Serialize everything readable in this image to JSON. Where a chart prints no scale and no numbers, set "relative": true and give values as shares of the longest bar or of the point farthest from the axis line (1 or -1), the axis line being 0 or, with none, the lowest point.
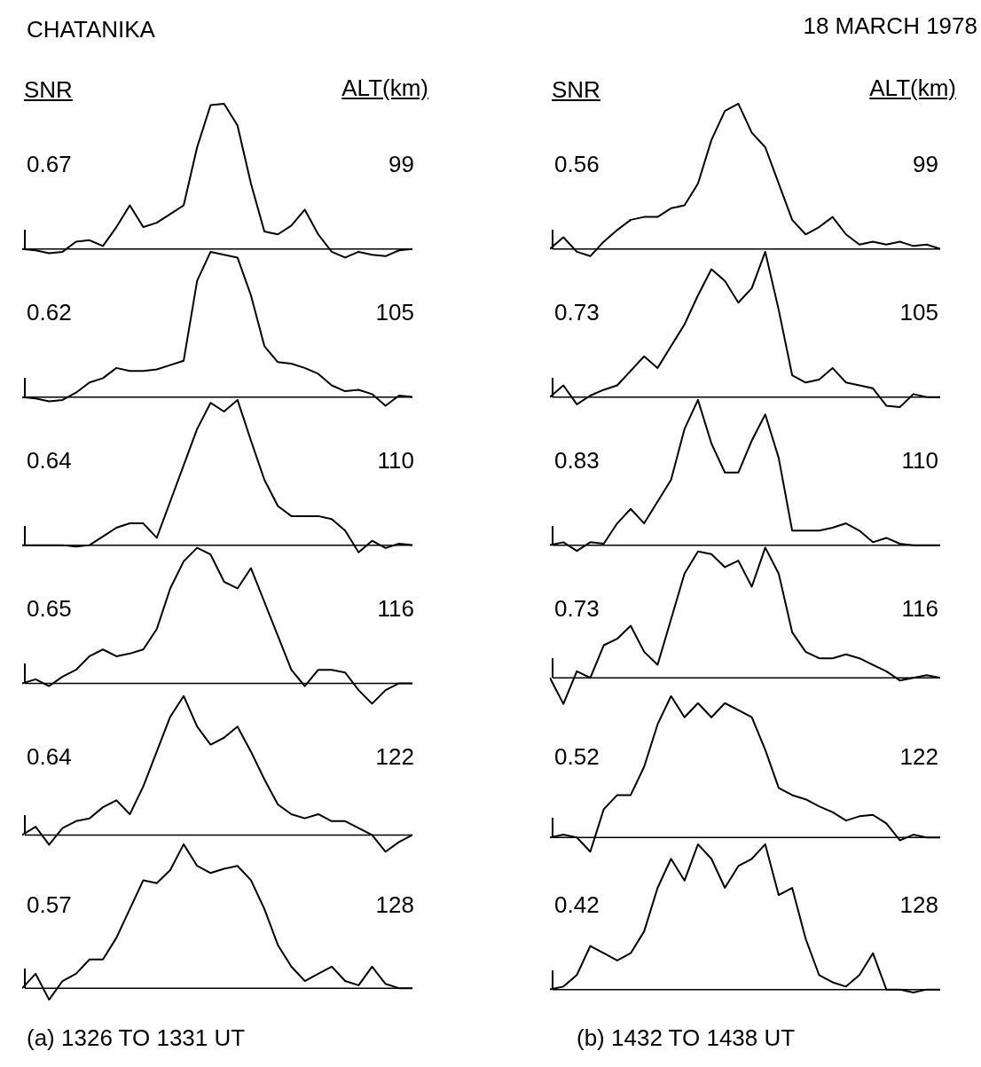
{
  "chart_data": [
    {
      "type": "line",
      "title": "CHATANIKA",
      "ylabel": "SNR",
      "y2label": "ALT(km)",
      "relative": true,
      "color": "#000000",
      "annotations": [
        "0.67",
        "99"
      ],
      "categories": [
        null,
        null,
        null,
        null,
        null,
        null,
        null,
        null,
        null,
        null,
        null,
        null,
        null,
        null,
        null,
        null,
        null,
        null,
        null,
        null,
        null,
        null,
        null,
        null,
        null,
        null,
        null,
        null,
        null,
        null
      ],
      "values": [
        0,
        -0.01,
        -0.03,
        -0.02,
        0.05,
        0.06,
        0.02,
        0.15,
        0.3,
        0.15,
        0.18,
        0.24,
        0.3,
        0.7,
        0.99,
        1.0,
        0.85,
        0.45,
        0.12,
        0.1,
        0.16,
        0.27,
        0.1,
        -0.02,
        -0.06,
        -0.02,
        -0.04,
        -0.05,
        -0.01,
        0
      ]
    },
    {
      "type": "line",
      "relative": true,
      "color": "#000000",
      "annotations": [
        "0.62",
        "105"
      ],
      "categories": [
        null,
        null,
        null,
        null,
        null,
        null,
        null,
        null,
        null,
        null,
        null,
        null,
        null,
        null,
        null,
        null,
        null,
        null,
        null,
        null,
        null,
        null,
        null,
        null,
        null,
        null,
        null,
        null,
        null,
        null
      ],
      "values": [
        0,
        -0.01,
        -0.03,
        -0.02,
        0.03,
        0.1,
        0.13,
        0.2,
        0.18,
        0.18,
        0.19,
        0.22,
        0.25,
        0.8,
        1.0,
        0.98,
        0.96,
        0.7,
        0.35,
        0.24,
        0.23,
        0.2,
        0.16,
        0.08,
        0.04,
        0.05,
        0.02,
        -0.06,
        0.01,
        0
      ]
    },
    {
      "type": "line",
      "relative": true,
      "color": "#000000",
      "annotations": [
        "0.64",
        "110"
      ],
      "categories": [
        null,
        null,
        null,
        null,
        null,
        null,
        null,
        null,
        null,
        null,
        null,
        null,
        null,
        null,
        null,
        null,
        null,
        null,
        null,
        null,
        null,
        null,
        null,
        null,
        null,
        null,
        null,
        null,
        null,
        null
      ],
      "values": [
        0,
        0,
        0,
        0,
        -0.01,
        0,
        0.06,
        0.12,
        0.15,
        0.15,
        0.05,
        0.3,
        0.55,
        0.8,
        0.98,
        0.92,
        1.0,
        0.72,
        0.45,
        0.27,
        0.2,
        0.2,
        0.2,
        0.18,
        0.1,
        -0.05,
        0.03,
        -0.02,
        0.01,
        0
      ]
    },
    {
      "type": "line",
      "relative": true,
      "color": "#000000",
      "annotations": [
        "0.65",
        "116"
      ],
      "categories": [
        null,
        null,
        null,
        null,
        null,
        null,
        null,
        null,
        null,
        null,
        null,
        null,
        null,
        null,
        null,
        null,
        null,
        null,
        null,
        null,
        null,
        null,
        null,
        null,
        null,
        null,
        null,
        null,
        null,
        null
      ],
      "values": [
        0,
        0.03,
        -0.02,
        0.05,
        0.1,
        0.2,
        0.25,
        0.2,
        0.22,
        0.25,
        0.4,
        0.7,
        0.9,
        1.0,
        0.95,
        0.75,
        0.7,
        0.85,
        0.6,
        0.35,
        0.1,
        -0.02,
        0.1,
        0.1,
        0.08,
        -0.05,
        -0.15,
        -0.05,
        0,
        0
      ]
    },
    {
      "type": "line",
      "relative": true,
      "color": "#000000",
      "annotations": [
        "0.64",
        "122"
      ],
      "categories": [
        null,
        null,
        null,
        null,
        null,
        null,
        null,
        null,
        null,
        null,
        null,
        null,
        null,
        null,
        null,
        null,
        null,
        null,
        null,
        null,
        null,
        null,
        null,
        null,
        null,
        null,
        null,
        null,
        null,
        null
      ],
      "values": [
        0,
        0.06,
        -0.07,
        0.05,
        0.1,
        0.12,
        0.2,
        0.25,
        0.15,
        0.35,
        0.6,
        0.85,
        1.0,
        0.78,
        0.65,
        0.7,
        0.78,
        0.6,
        0.4,
        0.22,
        0.15,
        0.12,
        0.15,
        0.1,
        0.1,
        0.05,
        0,
        -0.12,
        -0.05,
        0
      ]
    },
    {
      "type": "line",
      "relative": true,
      "color": "#000000",
      "annotations": [
        "0.57",
        "128",
        "(a)    1326  TO  1331  UT"
      ],
      "categories": [
        null,
        null,
        null,
        null,
        null,
        null,
        null,
        null,
        null,
        null,
        null,
        null,
        null,
        null,
        null,
        null,
        null,
        null,
        null,
        null,
        null,
        null,
        null,
        null,
        null,
        null,
        null,
        null,
        null,
        null
      ],
      "values": [
        0,
        0.1,
        -0.08,
        0.05,
        0.1,
        0.2,
        0.2,
        0.35,
        0.55,
        0.75,
        0.73,
        0.82,
        1.0,
        0.85,
        0.8,
        0.83,
        0.85,
        0.75,
        0.55,
        0.3,
        0.15,
        0.05,
        0.1,
        0.15,
        0.05,
        0.02,
        0.15,
        0.03,
        0,
        0
      ]
    },
    {
      "type": "line",
      "title": "18  MARCH  1978",
      "ylabel": "SNR",
      "y2label": "ALT(km)",
      "relative": true,
      "color": "#000000",
      "annotations": [
        "0.56",
        "99"
      ],
      "categories": [
        null,
        null,
        null,
        null,
        null,
        null,
        null,
        null,
        null,
        null,
        null,
        null,
        null,
        null,
        null,
        null,
        null,
        null,
        null,
        null,
        null,
        null,
        null,
        null,
        null,
        null,
        null,
        null,
        null,
        null
      ],
      "values": [
        0,
        0.08,
        -0.02,
        -0.05,
        0.05,
        0.13,
        0.2,
        0.22,
        0.22,
        0.28,
        0.3,
        0.45,
        0.75,
        0.95,
        1.0,
        0.8,
        0.7,
        0.45,
        0.2,
        0.1,
        0.15,
        0.22,
        0.1,
        0.03,
        0.05,
        0.03,
        0.05,
        0.02,
        0.03,
        0
      ]
    },
    {
      "type": "line",
      "relative": true,
      "color": "#000000",
      "annotations": [
        "0.73",
        "105"
      ],
      "categories": [
        null,
        null,
        null,
        null,
        null,
        null,
        null,
        null,
        null,
        null,
        null,
        null,
        null,
        null,
        null,
        null,
        null,
        null,
        null,
        null,
        null,
        null,
        null,
        null,
        null,
        null,
        null,
        null,
        null,
        null
      ],
      "values": [
        0,
        0.08,
        -0.05,
        0.01,
        0.05,
        0.08,
        0.18,
        0.28,
        0.2,
        0.35,
        0.5,
        0.7,
        0.88,
        0.8,
        0.65,
        0.75,
        1.0,
        0.6,
        0.15,
        0.1,
        0.12,
        0.2,
        0.1,
        0.08,
        0.06,
        -0.06,
        -0.07,
        0.02,
        0,
        0
      ]
    },
    {
      "type": "line",
      "relative": true,
      "color": "#000000",
      "annotations": [
        "0.83",
        "110"
      ],
      "categories": [
        null,
        null,
        null,
        null,
        null,
        null,
        null,
        null,
        null,
        null,
        null,
        null,
        null,
        null,
        null,
        null,
        null,
        null,
        null,
        null,
        null,
        null,
        null,
        null,
        null,
        null,
        null,
        null,
        null,
        null
      ],
      "values": [
        0,
        0.02,
        -0.04,
        0.02,
        0.01,
        0.15,
        0.25,
        0.15,
        0.3,
        0.45,
        0.8,
        1.0,
        0.7,
        0.5,
        0.5,
        0.72,
        0.9,
        0.6,
        0.1,
        0.1,
        0.1,
        0.12,
        0.15,
        0.1,
        0.02,
        0.05,
        0.01,
        0,
        0,
        0
      ]
    },
    {
      "type": "line",
      "relative": true,
      "color": "#000000",
      "annotations": [
        "0.73",
        "116"
      ],
      "categories": [
        null,
        null,
        null,
        null,
        null,
        null,
        null,
        null,
        null,
        null,
        null,
        null,
        null,
        null,
        null,
        null,
        null,
        null,
        null,
        null,
        null,
        null,
        null,
        null,
        null,
        null,
        null,
        null,
        null,
        null
      ],
      "values": [
        0,
        -0.2,
        0.05,
        0,
        0.25,
        0.3,
        0.4,
        0.2,
        0.1,
        0.45,
        0.8,
        0.97,
        0.95,
        0.85,
        0.9,
        0.7,
        1.0,
        0.8,
        0.35,
        0.2,
        0.15,
        0.15,
        0.18,
        0.15,
        0.1,
        0.05,
        -0.02,
        0,
        0.02,
        0
      ]
    },
    {
      "type": "line",
      "relative": true,
      "color": "#000000",
      "annotations": [
        "0.52",
        "122"
      ],
      "categories": [
        null,
        null,
        null,
        null,
        null,
        null,
        null,
        null,
        null,
        null,
        null,
        null,
        null,
        null,
        null,
        null,
        null,
        null,
        null,
        null,
        null,
        null,
        null,
        null,
        null,
        null,
        null,
        null,
        null,
        null
      ],
      "values": [
        0,
        0.02,
        0,
        -0.1,
        0.2,
        0.3,
        0.3,
        0.5,
        0.8,
        1.0,
        0.85,
        0.95,
        0.85,
        0.95,
        0.9,
        0.85,
        0.62,
        0.35,
        0.3,
        0.27,
        0.22,
        0.18,
        0.12,
        0.15,
        0.16,
        0.1,
        -0.02,
        0.02,
        0,
        0
      ]
    },
    {
      "type": "line",
      "relative": true,
      "color": "#000000",
      "annotations": [
        "0.42",
        "128",
        "(b)    1432  TO  1438  UT"
      ],
      "categories": [
        null,
        null,
        null,
        null,
        null,
        null,
        null,
        null,
        null,
        null,
        null,
        null,
        null,
        null,
        null,
        null,
        null,
        null,
        null,
        null,
        null,
        null,
        null,
        null,
        null,
        null,
        null,
        null,
        null,
        null
      ],
      "values": [
        0,
        0.02,
        0.1,
        0.3,
        0.25,
        0.2,
        0.25,
        0.4,
        0.7,
        0.9,
        0.75,
        1.0,
        0.9,
        0.7,
        0.85,
        0.9,
        1.0,
        0.65,
        0.7,
        0.35,
        0.1,
        0.05,
        0.02,
        0.1,
        0.25,
        0,
        0,
        -0.02,
        0,
        0
      ]
    }
  ]
}
